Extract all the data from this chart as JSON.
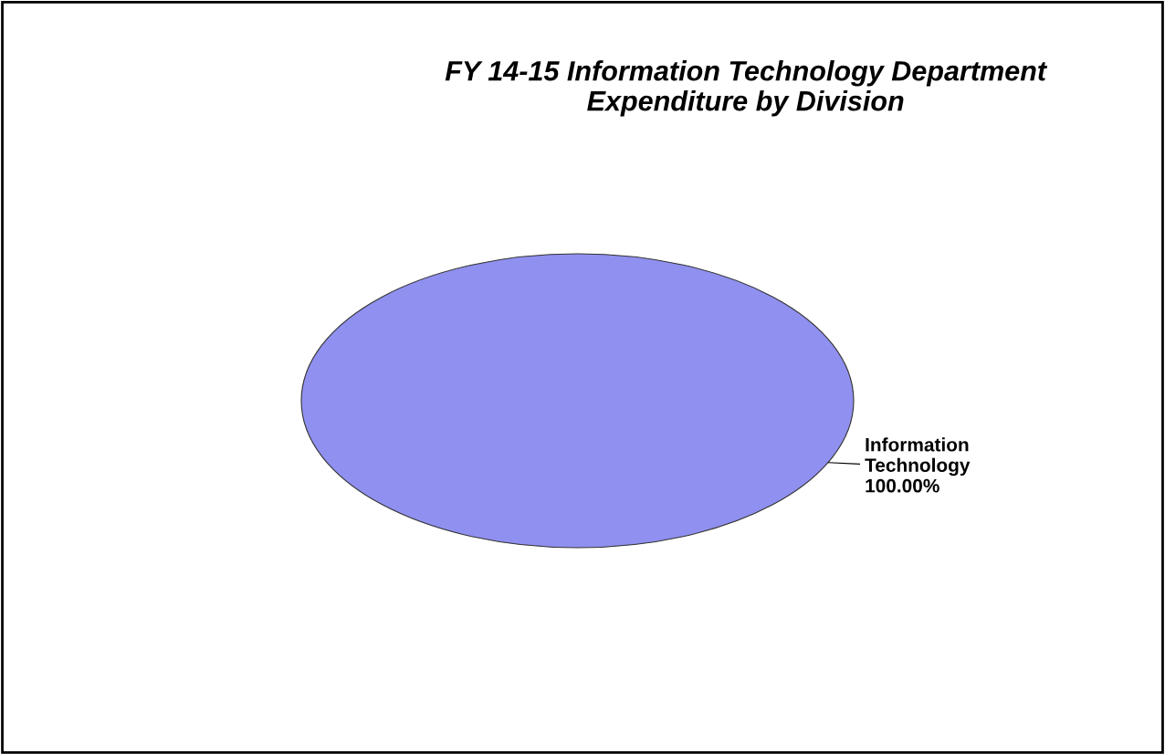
{
  "chart_data": {
    "type": "pie",
    "title": "FY 14-15 Information Technology Department\nExpenditure by Division",
    "categories": [
      "Information\nTechnology"
    ],
    "values": [
      100
    ],
    "colors": [
      "#9090f0"
    ],
    "value_labels": [
      "100.00%"
    ],
    "legend": false
  }
}
